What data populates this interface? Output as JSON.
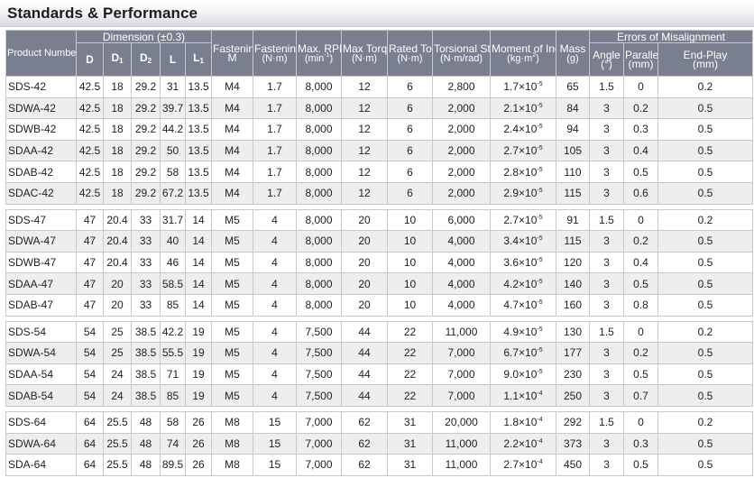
{
  "title": "Standards & Performance",
  "header": {
    "product_number": "Product Number",
    "dimension": "Dimension (±0.3)",
    "d": "D",
    "d1": "D",
    "d1_sub": "1",
    "d2": "D",
    "d2_sub": "2",
    "l": "L",
    "l1": "L",
    "l1_sub": "1",
    "fastening_bolt": "Fastening Bolt",
    "fastening_bolt_unit": "M",
    "fastening_torque": "Fastening Torque",
    "fastening_torque_unit": "(N·m)",
    "max_rpm": "Max. RPM",
    "max_rpm_unit": "(min",
    "max_rpm_sup": "-1",
    "max_rpm_close": ")",
    "max_torque": "Max Torque",
    "max_torque_unit": "(N·m)",
    "rated_torque": "Rated Torque",
    "rated_torque_unit": "(N·m)",
    "torsional_stiffness": "Torsional Stiffness",
    "torsional_stiffness_unit": "(N·m/rad)",
    "moment_of_inertia": "Moment of Inertia",
    "moment_of_inertia_unit": "(kg·m",
    "moment_sup": "2",
    "moment_close": ")",
    "mass": "Mass",
    "mass_unit": "(g)",
    "errors": "Errors of Misalignment",
    "angle": "Angle",
    "angle_unit": "(°)",
    "parallel": "Parallel",
    "parallel_unit": "(mm)",
    "endplay": "End-Play",
    "endplay_unit": "(mm)"
  },
  "groups": [
    {
      "rows": [
        {
          "pn": "SDS-42",
          "d": "42.5",
          "d1": "18",
          "d2": "29.2",
          "l": "31",
          "l1": "13.5",
          "bolt": "M4",
          "ft": "1.7",
          "rpm": "8,000",
          "mt": "12",
          "rt": "6",
          "ts": "2,800",
          "mi": "1.7×10",
          "mi_exp": "-5",
          "mass": "65",
          "angle": "1.5",
          "parallel": "0",
          "endplay": "0.2"
        },
        {
          "pn": "SDWA-42",
          "d": "42.5",
          "d1": "18",
          "d2": "29.2",
          "l": "39.7",
          "l1": "13.5",
          "bolt": "M4",
          "ft": "1.7",
          "rpm": "8,000",
          "mt": "12",
          "rt": "6",
          "ts": "2,000",
          "mi": "2.1×10",
          "mi_exp": "-5",
          "mass": "84",
          "angle": "3",
          "parallel": "0.2",
          "endplay": "0.5"
        },
        {
          "pn": "SDWB-42",
          "d": "42.5",
          "d1": "18",
          "d2": "29.2",
          "l": "44.2",
          "l1": "13.5",
          "bolt": "M4",
          "ft": "1.7",
          "rpm": "8,000",
          "mt": "12",
          "rt": "6",
          "ts": "2,000",
          "mi": "2.4×10",
          "mi_exp": "-5",
          "mass": "94",
          "angle": "3",
          "parallel": "0.3",
          "endplay": "0.5"
        },
        {
          "pn": "SDAA-42",
          "d": "42.5",
          "d1": "18",
          "d2": "29.2",
          "l": "50",
          "l1": "13.5",
          "bolt": "M4",
          "ft": "1.7",
          "rpm": "8,000",
          "mt": "12",
          "rt": "6",
          "ts": "2,000",
          "mi": "2.7×10",
          "mi_exp": "-5",
          "mass": "105",
          "angle": "3",
          "parallel": "0.4",
          "endplay": "0.5"
        },
        {
          "pn": "SDAB-42",
          "d": "42.5",
          "d1": "18",
          "d2": "29.2",
          "l": "58",
          "l1": "13.5",
          "bolt": "M4",
          "ft": "1.7",
          "rpm": "8,000",
          "mt": "12",
          "rt": "6",
          "ts": "2,000",
          "mi": "2.8×10",
          "mi_exp": "-5",
          "mass": "110",
          "angle": "3",
          "parallel": "0.5",
          "endplay": "0.5"
        },
        {
          "pn": "SDAC-42",
          "d": "42.5",
          "d1": "18",
          "d2": "29.2",
          "l": "67.2",
          "l1": "13.5",
          "bolt": "M4",
          "ft": "1.7",
          "rpm": "8,000",
          "mt": "12",
          "rt": "6",
          "ts": "2,000",
          "mi": "2.9×10",
          "mi_exp": "-5",
          "mass": "115",
          "angle": "3",
          "parallel": "0.6",
          "endplay": "0.5"
        }
      ]
    },
    {
      "rows": [
        {
          "pn": "SDS-47",
          "d": "47",
          "d1": "20.4",
          "d2": "33",
          "l": "31.7",
          "l1": "14",
          "bolt": "M5",
          "ft": "4",
          "rpm": "8,000",
          "mt": "20",
          "rt": "10",
          "ts": "6,000",
          "mi": "2.7×10",
          "mi_exp": "-5",
          "mass": "91",
          "angle": "1.5",
          "parallel": "0",
          "endplay": "0.2"
        },
        {
          "pn": "SDWA-47",
          "d": "47",
          "d1": "20.4",
          "d2": "33",
          "l": "40",
          "l1": "14",
          "bolt": "M5",
          "ft": "4",
          "rpm": "8,000",
          "mt": "20",
          "rt": "10",
          "ts": "4,000",
          "mi": "3.4×10",
          "mi_exp": "-5",
          "mass": "115",
          "angle": "3",
          "parallel": "0.2",
          "endplay": "0.5"
        },
        {
          "pn": "SDWB-47",
          "d": "47",
          "d1": "20.4",
          "d2": "33",
          "l": "46",
          "l1": "14",
          "bolt": "M5",
          "ft": "4",
          "rpm": "8,000",
          "mt": "20",
          "rt": "10",
          "ts": "4,000",
          "mi": "3.6×10",
          "mi_exp": "-5",
          "mass": "120",
          "angle": "3",
          "parallel": "0.4",
          "endplay": "0.5"
        },
        {
          "pn": "SDAA-47",
          "d": "47",
          "d1": "20",
          "d2": "33",
          "l": "58.5",
          "l1": "14",
          "bolt": "M5",
          "ft": "4",
          "rpm": "8,000",
          "mt": "20",
          "rt": "10",
          "ts": "4,000",
          "mi": "4.2×10",
          "mi_exp": "-5",
          "mass": "140",
          "angle": "3",
          "parallel": "0.5",
          "endplay": "0.5"
        },
        {
          "pn": "SDAB-47",
          "d": "47",
          "d1": "20",
          "d2": "33",
          "l": "85",
          "l1": "14",
          "bolt": "M5",
          "ft": "4",
          "rpm": "8,000",
          "mt": "20",
          "rt": "10",
          "ts": "4,000",
          "mi": "4.7×10",
          "mi_exp": "-5",
          "mass": "160",
          "angle": "3",
          "parallel": "0.8",
          "endplay": "0.5"
        }
      ]
    },
    {
      "rows": [
        {
          "pn": "SDS-54",
          "d": "54",
          "d1": "25",
          "d2": "38.5",
          "l": "42.2",
          "l1": "19",
          "bolt": "M5",
          "ft": "4",
          "rpm": "7,500",
          "mt": "44",
          "rt": "22",
          "ts": "11,000",
          "mi": "4.9×10",
          "mi_exp": "-5",
          "mass": "130",
          "angle": "1.5",
          "parallel": "0",
          "endplay": "0.2"
        },
        {
          "pn": "SDWA-54",
          "d": "54",
          "d1": "25",
          "d2": "38.5",
          "l": "55.5",
          "l1": "19",
          "bolt": "M5",
          "ft": "4",
          "rpm": "7,500",
          "mt": "44",
          "rt": "22",
          "ts": "7,000",
          "mi": "6.7×10",
          "mi_exp": "-5",
          "mass": "177",
          "angle": "3",
          "parallel": "0.2",
          "endplay": "0.5"
        },
        {
          "pn": "SDAA-54",
          "d": "54",
          "d1": "24",
          "d2": "38.5",
          "l": "71",
          "l1": "19",
          "bolt": "M5",
          "ft": "4",
          "rpm": "7,500",
          "mt": "44",
          "rt": "22",
          "ts": "7,000",
          "mi": "9.0×10",
          "mi_exp": "-5",
          "mass": "230",
          "angle": "3",
          "parallel": "0.5",
          "endplay": "0.5"
        },
        {
          "pn": "SDAB-54",
          "d": "54",
          "d1": "24",
          "d2": "38.5",
          "l": "85",
          "l1": "19",
          "bolt": "M5",
          "ft": "4",
          "rpm": "7,500",
          "mt": "44",
          "rt": "22",
          "ts": "7,000",
          "mi": "1.1×10",
          "mi_exp": "-4",
          "mass": "250",
          "angle": "3",
          "parallel": "0.7",
          "endplay": "0.5"
        }
      ]
    },
    {
      "rows": [
        {
          "pn": "SDS-64",
          "d": "64",
          "d1": "25.5",
          "d2": "48",
          "l": "58",
          "l1": "26",
          "bolt": "M8",
          "ft": "15",
          "rpm": "7,000",
          "mt": "62",
          "rt": "31",
          "ts": "20,000",
          "mi": "1.8×10",
          "mi_exp": "-4",
          "mass": "292",
          "angle": "1.5",
          "parallel": "0",
          "endplay": "0.2"
        },
        {
          "pn": "SDWA-64",
          "d": "64",
          "d1": "25.5",
          "d2": "48",
          "l": "74",
          "l1": "26",
          "bolt": "M8",
          "ft": "15",
          "rpm": "7,000",
          "mt": "62",
          "rt": "31",
          "ts": "11,000",
          "mi": "2.2×10",
          "mi_exp": "-4",
          "mass": "373",
          "angle": "3",
          "parallel": "0.3",
          "endplay": "0.5"
        },
        {
          "pn": "SDA-64",
          "d": "64",
          "d1": "25.5",
          "d2": "48",
          "l": "89.5",
          "l1": "26",
          "bolt": "M8",
          "ft": "15",
          "rpm": "7,000",
          "mt": "62",
          "rt": "31",
          "ts": "11,000",
          "mi": "2.7×10",
          "mi_exp": "-4",
          "mass": "450",
          "angle": "3",
          "parallel": "0.5",
          "endplay": "0.5"
        }
      ]
    }
  ]
}
